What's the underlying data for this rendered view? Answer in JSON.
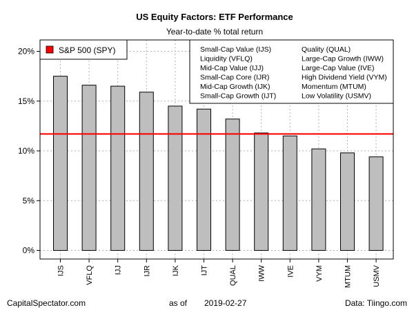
{
  "chart_data": {
    "type": "bar",
    "title": "US Equity Factors: ETF Performance",
    "subtitle": "Year-to-date % total return",
    "categories": [
      "IJS",
      "VFLQ",
      "IJJ",
      "IJR",
      "IJK",
      "IJT",
      "QUAL",
      "IWW",
      "IVE",
      "VYM",
      "MTUM",
      "USMV"
    ],
    "values": [
      17.5,
      16.6,
      16.5,
      15.9,
      14.5,
      14.2,
      13.2,
      11.8,
      11.5,
      10.2,
      9.8,
      9.4
    ],
    "bar_color": "#bebebe",
    "reference_line": {
      "label": "S&P 500 (SPY)",
      "value": 11.7,
      "color": "#ff0000"
    },
    "ylim": [
      0,
      21
    ],
    "y_ticks": [
      0,
      5,
      10,
      15,
      20
    ],
    "y_tick_labels": [
      "0%",
      "5%",
      "10%",
      "15%",
      "20%"
    ],
    "grid": true,
    "legend_position": "top-left",
    "key_box": {
      "left_column": [
        "Small-Cap Value (IJS)",
        "Liquidity (VFLQ)",
        "Mid-Cap Value (IJJ)",
        "Small-Cap Core (IJR)",
        "Mid-Cap Growth (IJK)",
        "Small-Cap Growth (IJT)"
      ],
      "right_column": [
        "Quality (QUAL)",
        "Large-Cap Growth (IWW)",
        "Large-Cap Value (IVE)",
        "High Dividend Yield (VYM)",
        "Momentum (MTUM)",
        "Low Volatility (USMV)"
      ]
    }
  },
  "footer": {
    "source_left": "CapitalSpectator.com",
    "date_prefix": "as of",
    "date": "2019-02-27",
    "source_right": "Data: Tiingo.com"
  }
}
